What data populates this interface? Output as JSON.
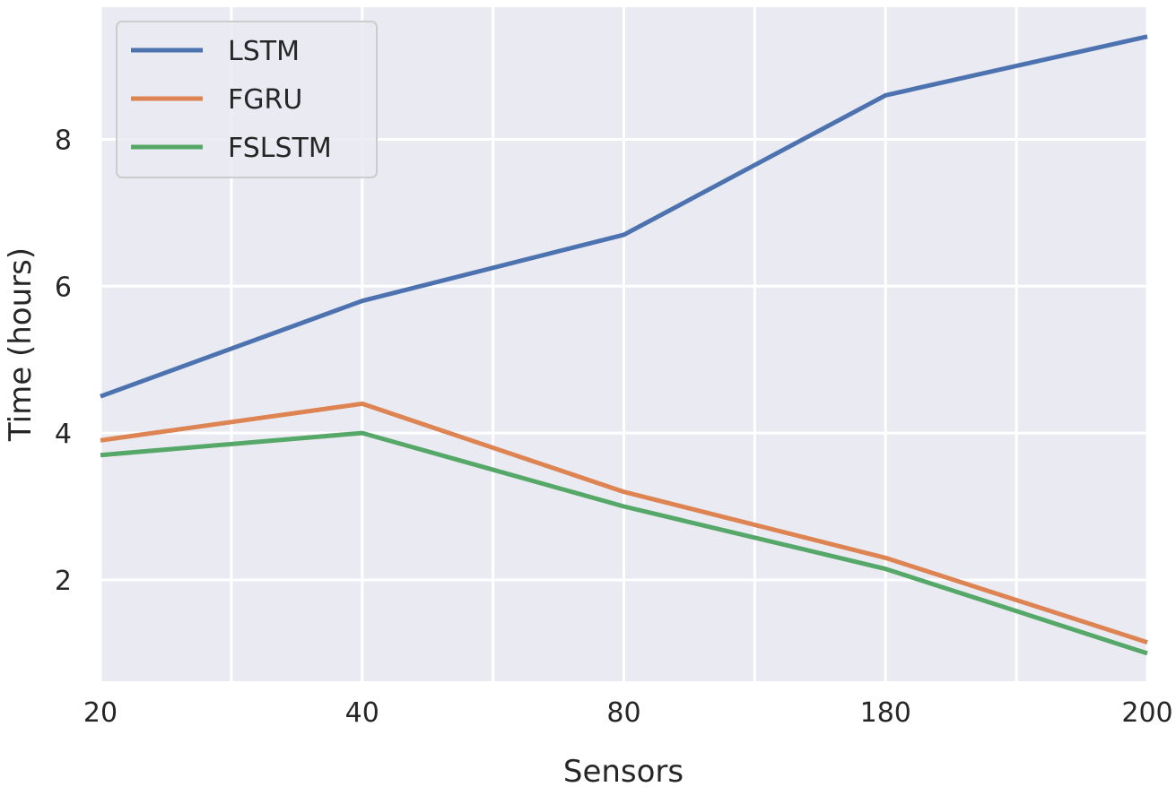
{
  "chart_data": {
    "type": "line",
    "xlabel": "Sensors",
    "ylabel": "Time (hours)",
    "categories": [
      "20",
      "40",
      "80",
      "180",
      "200"
    ],
    "yticks": [
      2,
      4,
      6,
      8
    ],
    "ylim": [
      0.62,
      9.8
    ],
    "grid": true,
    "legend_position": "top-left",
    "series": [
      {
        "name": "LSTM",
        "color": "#4c72b0",
        "values": [
          4.5,
          5.8,
          6.7,
          8.6,
          9.4
        ]
      },
      {
        "name": "FGRU",
        "color": "#dd8452",
        "values": [
          3.9,
          4.4,
          3.2,
          2.3,
          1.15
        ]
      },
      {
        "name": "FSLSTM",
        "color": "#55a868",
        "values": [
          3.7,
          4.0,
          3.0,
          2.15,
          1.0
        ]
      }
    ]
  }
}
